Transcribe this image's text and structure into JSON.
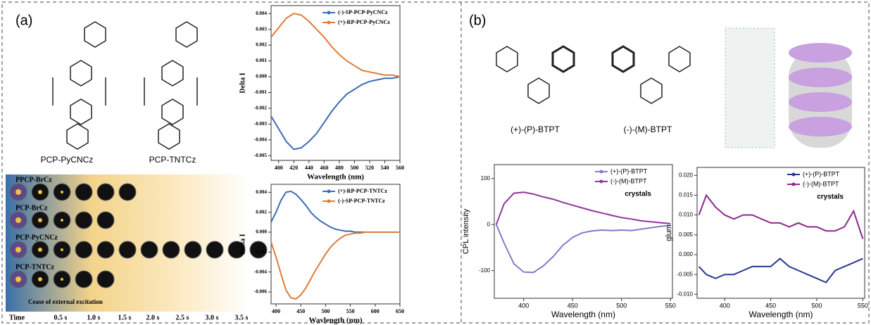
{
  "panel_labels": [
    "(a)",
    "(b)"
  ],
  "molecules": [
    "PCP-PyCNCz",
    "PCP-TNTCz",
    "(+)-(P)-BTPT",
    "(-)-(M)-BTPT"
  ],
  "afterglow": {
    "rows": [
      "PPCP-BrCz",
      "PCP-BrCz",
      "PCP-PyCNCz",
      "PCP-TNTCz"
    ],
    "note": "Cease of external excitation",
    "time_axis": [
      "Time",
      "0.5 s",
      "1.0 s",
      "1.5 s",
      "2.0 s",
      "2.5 s",
      "3.0 s",
      "3.5 s"
    ]
  },
  "chart_data": [
    {
      "type": "line",
      "xlabel": "Wavelength (nm)",
      "ylabel": "Delta I",
      "legend": "upper right",
      "x": [
        390,
        400,
        410,
        420,
        430,
        440,
        450,
        460,
        470,
        480,
        490,
        500,
        510,
        520,
        530,
        540,
        550,
        560
      ],
      "xlim": [
        390,
        560
      ],
      "xticks": [
        400,
        420,
        440,
        460,
        480,
        500,
        520,
        540,
        560
      ],
      "ylim": [
        -0.0053,
        0.0045
      ],
      "yticks": [
        0.004,
        0.003,
        0.002,
        0.001,
        {
          "value": 0,
          "label": "0.000"
        },
        -0.001,
        -0.002,
        -0.003,
        -0.004,
        -0.005
      ],
      "series": [
        {
          "name": "(-)-SP-PCP-PyCNCz",
          "color": "#3a6db0",
          "values": [
            -0.0025,
            -0.0033,
            -0.0041,
            -0.0046,
            -0.0045,
            -0.0041,
            -0.0036,
            -0.0029,
            -0.0022,
            -0.0016,
            -0.0011,
            -0.0008,
            -0.0005,
            -0.0003,
            -0.0002,
            -0.0001,
            -0.0001,
            0
          ]
        },
        {
          "name": "(+)-RP-PCP-PyCNCz",
          "color": "#e07b39",
          "values": [
            0.0025,
            0.0031,
            0.0037,
            0.004,
            0.0039,
            0.0035,
            0.003,
            0.0025,
            0.0019,
            0.0014,
            0.001,
            0.0007,
            0.0004,
            0.0003,
            0.0002,
            0.0001,
            0.0001,
            0
          ]
        }
      ]
    },
    {
      "type": "line",
      "xlabel": "Wavlength (nm)",
      "ylabel": "Delta I",
      "legend": "upper right",
      "x": [
        390,
        400,
        410,
        420,
        430,
        440,
        450,
        460,
        470,
        480,
        490,
        500,
        510,
        520,
        530,
        540,
        550,
        560,
        570,
        580,
        590,
        600,
        610,
        620,
        630,
        640,
        650
      ],
      "xlim": [
        390,
        650
      ],
      "xticks": [
        400,
        450,
        500,
        550,
        600,
        650
      ],
      "ylim": [
        -0.0072,
        0.0048
      ],
      "yticks": [
        0.004,
        0.002,
        {
          "value": 0,
          "label": "0.000"
        },
        -0.002,
        -0.004,
        -0.006
      ],
      "series": [
        {
          "name": "(+)-RP-PCP-TNTCz",
          "color": "#3a6db0",
          "values": [
            0.001,
            0.002,
            0.0032,
            0.004,
            0.0041,
            0.0038,
            0.0033,
            0.0027,
            0.002,
            0.0015,
            0.0011,
            0.0008,
            0.0005,
            0.0003,
            0.0002,
            0.0001,
            0.0001,
            0,
            0,
            0,
            0,
            0,
            0,
            0,
            0,
            0,
            0
          ]
        },
        {
          "name": "(-)-SP-PCP-TNTCz",
          "color": "#e07b39",
          "values": [
            -0.001,
            -0.0025,
            -0.0042,
            -0.0058,
            -0.0066,
            -0.0067,
            -0.0063,
            -0.0056,
            -0.0047,
            -0.0038,
            -0.003,
            -0.0022,
            -0.0015,
            -0.001,
            -0.0006,
            -0.0003,
            -0.0002,
            -0.0001,
            -0.0001,
            0,
            0,
            0,
            0,
            0,
            0,
            0,
            0
          ]
        }
      ]
    },
    {
      "type": "line",
      "xlabel": "Wavelength (nm)",
      "ylabel": "CPL intensity",
      "annotation": "crystals",
      "legend": "upper right",
      "x": [
        372,
        380,
        390,
        400,
        410,
        420,
        430,
        440,
        450,
        460,
        470,
        480,
        490,
        500,
        510,
        520,
        530,
        540,
        550
      ],
      "xlim": [
        370,
        552
      ],
      "xticks": [
        400,
        450,
        500,
        550
      ],
      "ylim": [
        -160,
        130
      ],
      "yticks": [
        100,
        0,
        -100
      ],
      "series": [
        {
          "name": "(+)-(P)-BTPT",
          "color": "#8878cc",
          "values": [
            0,
            -40,
            -85,
            -103,
            -104,
            -90,
            -70,
            -45,
            -28,
            -18,
            -14,
            -12,
            -13,
            -12,
            -13,
            -10,
            -7,
            -4,
            -2
          ]
        },
        {
          "name": "(-)-(M)-BTPT",
          "color": "#93369a",
          "values": [
            0,
            45,
            68,
            70,
            66,
            60,
            55,
            48,
            42,
            36,
            30,
            25,
            20,
            15,
            12,
            8,
            6,
            4,
            2
          ]
        }
      ]
    },
    {
      "type": "line",
      "xlabel": "Wavelength (nm)",
      "ylabel": "glum",
      "annotation": "crystals",
      "legend": "upper right",
      "x": [
        372,
        380,
        390,
        400,
        410,
        420,
        430,
        440,
        450,
        460,
        470,
        480,
        490,
        500,
        510,
        520,
        530,
        540,
        550
      ],
      "xlim": [
        370,
        552
      ],
      "xticks": [
        400,
        450,
        500,
        550
      ],
      "ylim": [
        -0.011,
        0.022
      ],
      "yticks": [
        {
          "value": 0.02,
          "label": "0.020"
        },
        0.015,
        {
          "value": 0.01,
          "label": "0.010"
        },
        0.005,
        {
          "value": 0,
          "label": "0.000"
        },
        -0.005,
        {
          "value": -0.01,
          "label": "-0.010"
        }
      ],
      "series": [
        {
          "name": "(+)-(P)-BTPT",
          "color": "#26398f",
          "values": [
            -0.003,
            -0.005,
            -0.006,
            -0.005,
            -0.005,
            -0.004,
            -0.003,
            -0.003,
            -0.003,
            -0.001,
            -0.003,
            -0.004,
            -0.005,
            -0.006,
            -0.007,
            -0.004,
            -0.003,
            -0.002,
            -0.001
          ]
        },
        {
          "name": "(-)-(M)-BTPT",
          "color": "#8b2a8b",
          "values": [
            0.01,
            0.015,
            0.012,
            0.01,
            0.009,
            0.01,
            0.01,
            0.009,
            0.008,
            0.008,
            0.007,
            0.008,
            0.007,
            0.007,
            0.006,
            0.006,
            0.007,
            0.011,
            0.004
          ]
        }
      ]
    }
  ]
}
